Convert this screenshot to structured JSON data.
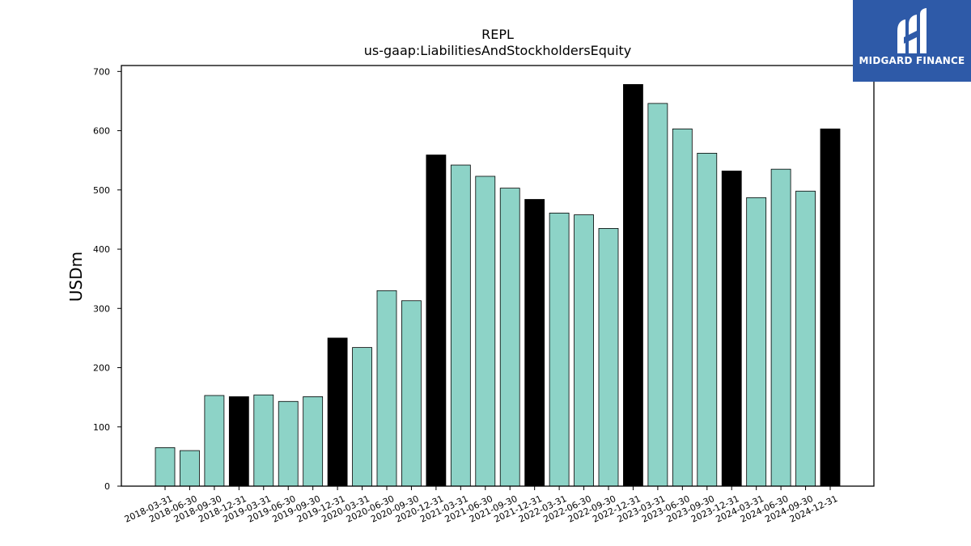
{
  "chart_data": {
    "type": "bar",
    "title": "REPL",
    "subtitle": "us-gaap:LiabilitiesAndStockholdersEquity",
    "xlabel": "",
    "ylabel": "USDm",
    "ylim": [
      0,
      710
    ],
    "yticks": [
      0,
      100,
      200,
      300,
      400,
      500,
      600,
      700
    ],
    "grid": false,
    "legend": "none",
    "colors": {
      "quarter": "#8dd3c7",
      "year_end": "#000000",
      "edge": "#000000"
    },
    "categories": [
      "2018-03-31",
      "2018-06-30",
      "2018-09-30",
      "2018-12-31",
      "2019-03-31",
      "2019-06-30",
      "2019-09-30",
      "2019-12-31",
      "2020-03-31",
      "2020-06-30",
      "2020-09-30",
      "2020-12-31",
      "2021-03-31",
      "2021-06-30",
      "2021-09-30",
      "2021-12-31",
      "2022-03-31",
      "2022-06-30",
      "2022-09-30",
      "2022-12-31",
      "2023-03-31",
      "2023-06-30",
      "2023-09-30",
      "2023-12-31",
      "2024-03-31",
      "2024-06-30",
      "2024-09-30",
      "2024-12-31"
    ],
    "values": [
      65,
      60,
      153,
      151,
      154,
      143,
      151,
      250,
      234,
      330,
      313,
      559,
      542,
      523,
      503,
      484,
      461,
      458,
      435,
      678,
      646,
      603,
      562,
      532,
      487,
      535,
      498,
      603
    ],
    "highlight": [
      false,
      false,
      false,
      true,
      false,
      false,
      false,
      true,
      false,
      false,
      false,
      true,
      false,
      false,
      false,
      true,
      false,
      false,
      false,
      true,
      false,
      false,
      false,
      true,
      false,
      false,
      false,
      true
    ]
  },
  "logo": {
    "text": "MIDGARD FINANCE"
  }
}
